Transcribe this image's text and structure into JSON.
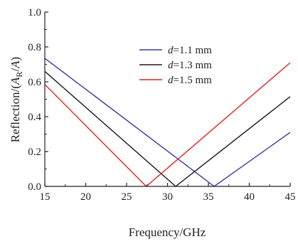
{
  "chart_data": {
    "type": "line",
    "xlabel": "Frequency/GHz",
    "ylabel_parts": {
      "prefix": "Reflection/(",
      "var_a": "A",
      "subscript": "R",
      "slash": "/",
      "var_b": "A",
      "suffix": ")"
    },
    "xlim": [
      15,
      45
    ],
    "ylim": [
      0,
      1.0
    ],
    "x_ticks": [
      "15",
      "20",
      "25",
      "30",
      "35",
      "40",
      "45"
    ],
    "y_ticks": [
      "0.0",
      "0.2",
      "0.4",
      "0.6",
      "0.8",
      "1.0"
    ],
    "grid": false,
    "legend_position": "top-right",
    "series": [
      {
        "name": "d=1.1 mm",
        "name_var": "d",
        "name_rest": "=1.1 mm",
        "color": "#3a3aa0",
        "points": [
          [
            15,
            0.735
          ],
          [
            35.7,
            0.0
          ],
          [
            45,
            0.31
          ]
        ]
      },
      {
        "name": "d=1.3 mm",
        "name_var": "d",
        "name_rest": "=1.3 mm",
        "color": "#1a1a1a",
        "points": [
          [
            15,
            0.66
          ],
          [
            31.0,
            0.0
          ],
          [
            45,
            0.515
          ]
        ]
      },
      {
        "name": "d=1.5 mm",
        "name_var": "d",
        "name_rest": "=1.5 mm",
        "color": "#e02424",
        "points": [
          [
            15,
            0.585
          ],
          [
            27.4,
            0.0
          ],
          [
            45,
            0.71
          ]
        ]
      }
    ]
  }
}
